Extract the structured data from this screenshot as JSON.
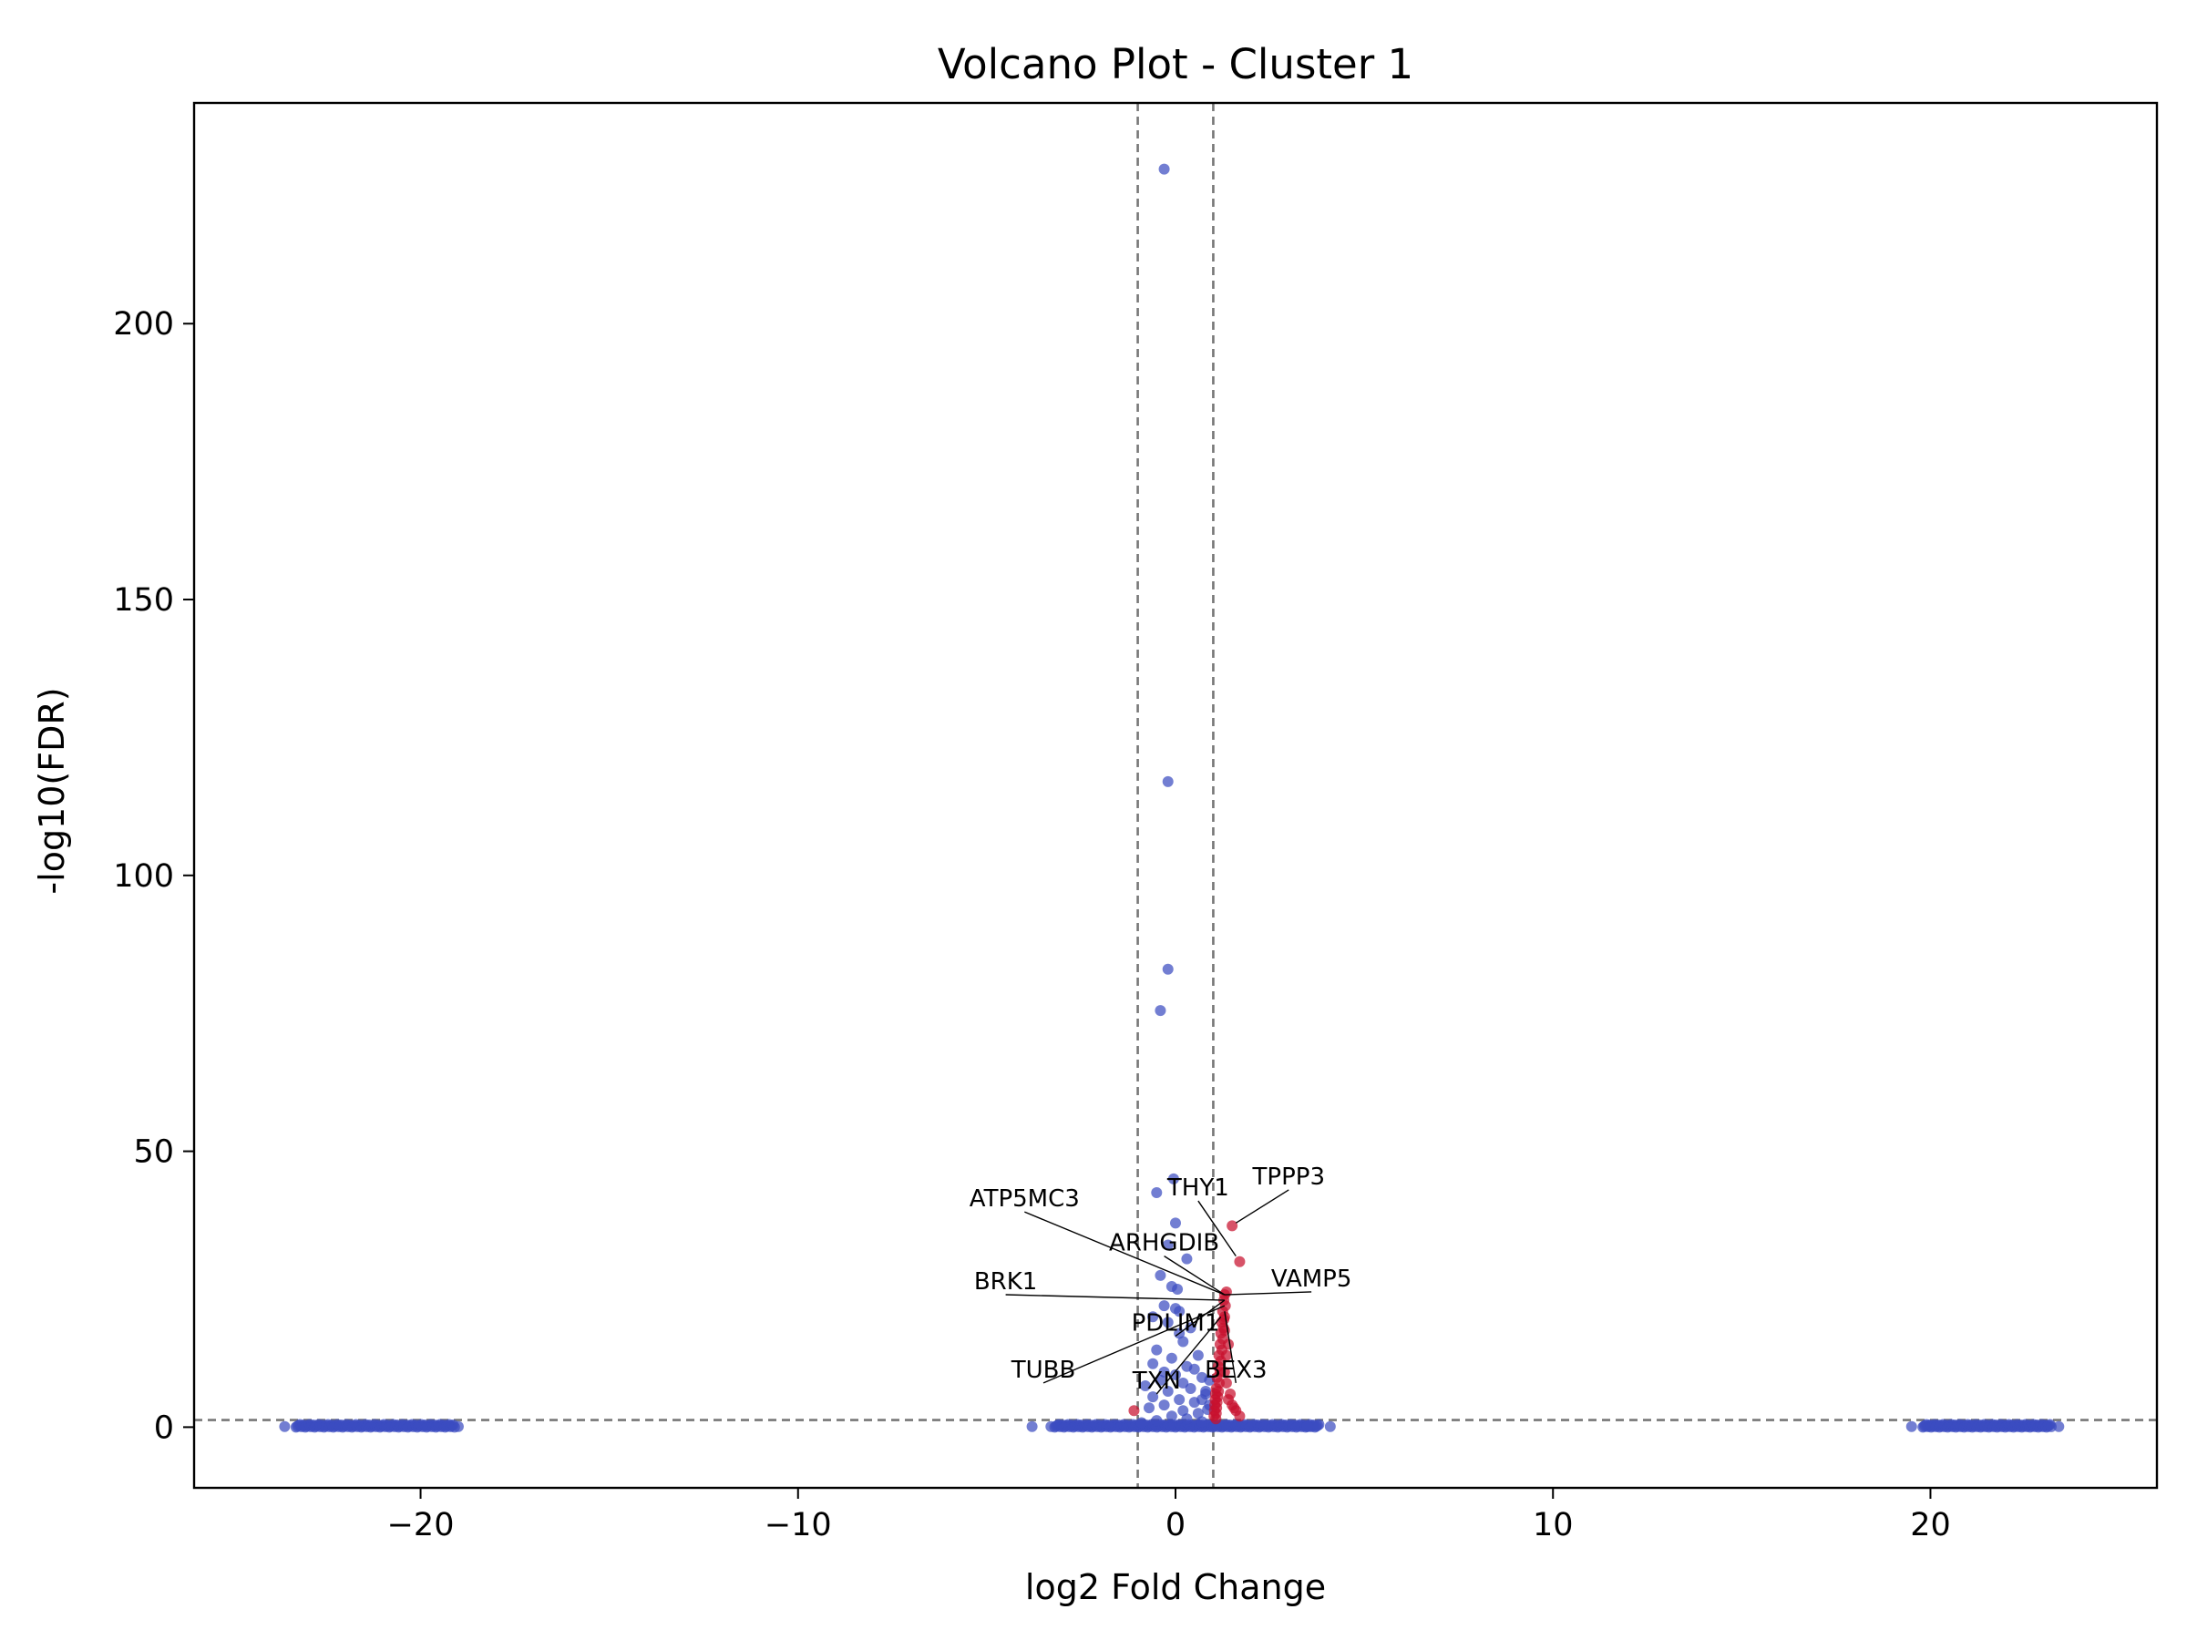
{
  "chart_data": {
    "type": "scatter",
    "title": "Volcano Plot - Cluster 1",
    "xlabel": "log2 Fold Change",
    "ylabel": "-log10(FDR)",
    "xlim": [
      -26,
      26
    ],
    "ylim": [
      -11,
      240
    ],
    "x_ticks": [
      -20,
      -10,
      0,
      10,
      20
    ],
    "x_tick_labels": [
      "−20",
      "−10",
      "0",
      "10",
      "20"
    ],
    "y_ticks": [
      0,
      50,
      100,
      150,
      200
    ],
    "y_tick_labels": [
      "0",
      "50",
      "100",
      "150",
      "200"
    ],
    "grid": false,
    "thresholds": {
      "log2fc": [
        -1,
        1
      ],
      "neg_log10_fdr": 1.3
    },
    "colors": {
      "down_or_ns": "#3b4cc0",
      "up": "#c8102e",
      "threshold_line": "#777777"
    },
    "series": [
      {
        "color": "#3b4cc0",
        "points": [
          [
            -0.3,
            228
          ],
          [
            -0.2,
            117
          ],
          [
            -0.2,
            83
          ],
          [
            -0.4,
            75.5
          ],
          [
            -0.05,
            45
          ],
          [
            -0.5,
            42.5
          ],
          [
            0.0,
            37
          ],
          [
            -0.2,
            33
          ],
          [
            0.3,
            30.5
          ],
          [
            -0.4,
            27.5
          ],
          [
            -0.1,
            25.5
          ],
          [
            0.05,
            25
          ],
          [
            -0.3,
            22
          ],
          [
            0.0,
            21.5
          ],
          [
            0.1,
            21
          ],
          [
            -0.6,
            20
          ],
          [
            -0.2,
            19
          ],
          [
            0.4,
            18
          ],
          [
            0.1,
            17
          ],
          [
            0.2,
            15.5
          ],
          [
            -0.5,
            14
          ],
          [
            0.6,
            13
          ],
          [
            -0.1,
            12.5
          ],
          [
            -0.6,
            11.5
          ],
          [
            0.3,
            11
          ],
          [
            0.5,
            10.5
          ],
          [
            -0.3,
            10
          ],
          [
            0.0,
            9.5
          ],
          [
            0.7,
            9
          ],
          [
            -0.4,
            8.5
          ],
          [
            0.2,
            8
          ],
          [
            -0.8,
            7.5
          ],
          [
            0.4,
            7
          ],
          [
            -0.2,
            6.5
          ],
          [
            0.8,
            6
          ],
          [
            -0.6,
            5.5
          ],
          [
            0.1,
            5
          ],
          [
            0.5,
            4.5
          ],
          [
            -0.3,
            4
          ],
          [
            0.9,
            4
          ],
          [
            -0.7,
            3.5
          ],
          [
            0.2,
            3
          ],
          [
            0.6,
            2.5
          ],
          [
            -0.1,
            2
          ],
          [
            0.3,
            1.5
          ],
          [
            -0.5,
            1.2
          ],
          [
            0.7,
            1
          ],
          [
            -0.9,
            0.8
          ],
          [
            0.8,
            6.5
          ],
          [
            0.9,
            8.5
          ],
          [
            0.7,
            5
          ],
          [
            0.85,
            3.2
          ],
          [
            -3.8,
            0.1
          ],
          [
            -3.3,
            0.1
          ],
          [
            4.1,
            0.1
          ],
          [
            3.5,
            0.1
          ],
          [
            -23.6,
            0.1
          ],
          [
            -19.0,
            0.1
          ],
          [
            19.5,
            0.1
          ],
          [
            23.4,
            0.1
          ]
        ],
        "zero_bands": [
          {
            "x_start": -23.3,
            "x_end": -19.1,
            "count": 120
          },
          {
            "x_start": -3.2,
            "x_end": 3.8,
            "count": 200
          },
          {
            "x_start": 19.8,
            "x_end": 23.2,
            "count": 110
          }
        ]
      },
      {
        "color": "#c8102e",
        "points": [
          [
            1.5,
            36.5
          ],
          [
            1.7,
            30
          ],
          [
            1.35,
            24.5
          ],
          [
            1.3,
            24
          ],
          [
            1.28,
            23
          ],
          [
            1.32,
            22
          ],
          [
            1.25,
            21
          ],
          [
            1.3,
            20
          ],
          [
            1.22,
            19
          ],
          [
            1.27,
            18
          ],
          [
            1.2,
            17
          ],
          [
            1.25,
            16
          ],
          [
            1.18,
            15
          ],
          [
            1.23,
            14
          ],
          [
            1.15,
            13
          ],
          [
            1.2,
            12
          ],
          [
            1.13,
            11
          ],
          [
            1.18,
            10
          ],
          [
            1.1,
            9
          ],
          [
            1.16,
            8
          ],
          [
            1.08,
            7
          ],
          [
            1.14,
            6.5
          ],
          [
            1.06,
            6
          ],
          [
            1.12,
            5.5
          ],
          [
            1.05,
            5
          ],
          [
            1.1,
            4.5
          ],
          [
            1.04,
            4
          ],
          [
            1.09,
            3.5
          ],
          [
            1.03,
            3
          ],
          [
            1.08,
            2.5
          ],
          [
            1.02,
            2
          ],
          [
            1.07,
            1.5
          ],
          [
            1.4,
            5
          ],
          [
            1.5,
            4
          ],
          [
            1.6,
            3
          ],
          [
            1.7,
            2
          ],
          [
            1.45,
            6
          ],
          [
            1.55,
            3.5
          ],
          [
            1.35,
            8
          ],
          [
            1.3,
            10
          ],
          [
            1.35,
            13
          ],
          [
            1.4,
            15
          ],
          [
            1.3,
            17.5
          ],
          [
            1.28,
            19.5
          ],
          [
            -1.1,
            3
          ]
        ]
      }
    ],
    "annotations": [
      {
        "text": "TPPP3",
        "x": 3.0,
        "y": 44,
        "to_x": 1.6,
        "to_y": 37
      },
      {
        "text": "ATP5MC3",
        "x": -4.0,
        "y": 40,
        "to_x": 1.3,
        "to_y": 24
      },
      {
        "text": "THY1",
        "x": 0.6,
        "y": 42,
        "to_x": 1.6,
        "to_y": 31
      },
      {
        "text": "ARHGDIB",
        "x": -0.3,
        "y": 32,
        "to_x": 1.3,
        "to_y": 24
      },
      {
        "text": "VAMP5",
        "x": 3.6,
        "y": 25.5,
        "to_x": 1.3,
        "to_y": 24
      },
      {
        "text": "BRK1",
        "x": -4.5,
        "y": 25,
        "to_x": 1.3,
        "to_y": 23
      },
      {
        "text": "PDLIM1",
        "x": 0.0,
        "y": 17.5,
        "to_x": 1.3,
        "to_y": 23
      },
      {
        "text": "TUBB",
        "x": -3.5,
        "y": 9,
        "to_x": 1.3,
        "to_y": 22
      },
      {
        "text": "BEX3",
        "x": 1.6,
        "y": 9,
        "to_x": 1.3,
        "to_y": 21
      },
      {
        "text": "TXN",
        "x": -0.5,
        "y": 7,
        "to_x": 1.2,
        "to_y": 20
      }
    ]
  }
}
